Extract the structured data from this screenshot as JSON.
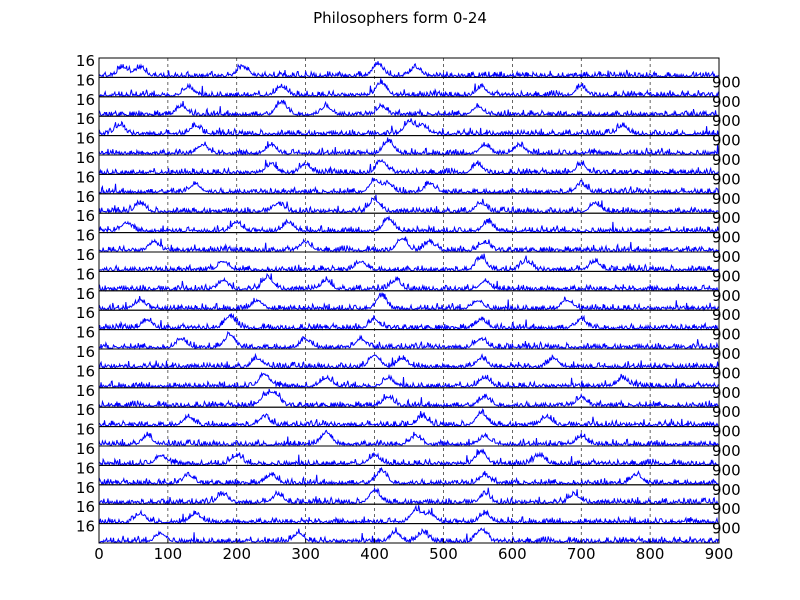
{
  "chart_data": {
    "type": "line",
    "title": "Philosophers form 0-24",
    "panel_count": 25,
    "x_range": [
      0,
      900
    ],
    "x_ticks": [
      0,
      100,
      200,
      300,
      400,
      500,
      600,
      700,
      800,
      900
    ],
    "x_tick_labels": [
      "0",
      "100",
      "200",
      "300",
      "400",
      "500",
      "600",
      "700",
      "800",
      "900"
    ],
    "y_range": [
      0,
      16
    ],
    "grid": "vertical-dashed",
    "line_color": "#0000ff",
    "series_points": 900,
    "peak_positions": [
      [
        405,
        460,
        35,
        60,
        210
      ],
      [
        410,
        555,
        130,
        265,
        700
      ],
      [
        265,
        410,
        550,
        120,
        330
      ],
      [
        450,
        470,
        30,
        140,
        760
      ],
      [
        420,
        560,
        250,
        610,
        150
      ],
      [
        410,
        550,
        250,
        300,
        700
      ],
      [
        400,
        420,
        140,
        700,
        480
      ],
      [
        400,
        555,
        60,
        260,
        720
      ],
      [
        420,
        200,
        565,
        275,
        40
      ],
      [
        440,
        480,
        300,
        560,
        80
      ],
      [
        555,
        380,
        180,
        620,
        720
      ],
      [
        245,
        330,
        560,
        430,
        180
      ],
      [
        410,
        550,
        60,
        230,
        680
      ],
      [
        190,
        400,
        555,
        70,
        700
      ],
      [
        190,
        380,
        555,
        300,
        120
      ],
      [
        400,
        440,
        555,
        230,
        660
      ],
      [
        240,
        420,
        560,
        330,
        760
      ],
      [
        255,
        240,
        420,
        700,
        560
      ],
      [
        555,
        470,
        240,
        650,
        130
      ],
      [
        330,
        460,
        560,
        70,
        700
      ],
      [
        555,
        640,
        400,
        200,
        90
      ],
      [
        410,
        560,
        250,
        130,
        780
      ],
      [
        400,
        560,
        260,
        180,
        690
      ],
      [
        460,
        480,
        60,
        140,
        560
      ],
      [
        555,
        470,
        290,
        430,
        90
      ]
    ]
  }
}
